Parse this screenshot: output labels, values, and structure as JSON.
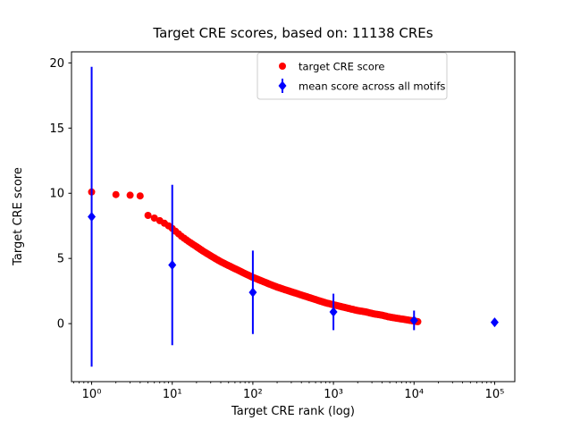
{
  "chart_data": {
    "type": "scatter",
    "title": "Target CRE scores, based on: 11138 CREs",
    "xlabel": "Target CRE rank (log)",
    "ylabel": "Target CRE score",
    "x_scale": "log10",
    "xlim_log10": [
      -0.25,
      5.25
    ],
    "ylim": [
      -4.45,
      20.85
    ],
    "x_ticks": [
      {
        "log10": 0,
        "label": "10⁰"
      },
      {
        "log10": 1,
        "label": "10¹"
      },
      {
        "log10": 2,
        "label": "10²"
      },
      {
        "log10": 3,
        "label": "10³"
      },
      {
        "log10": 4,
        "label": "10⁴"
      },
      {
        "log10": 5,
        "label": "10⁵"
      }
    ],
    "y_ticks": [
      0,
      5,
      10,
      15,
      20
    ],
    "grid": false,
    "legend_position": "upper center",
    "series": [
      {
        "name": "target CRE score",
        "marker": "circle",
        "color": "#ff0000",
        "n_points": 11138,
        "anchor_ranks": [
          1,
          2,
          3,
          4,
          5,
          6,
          7,
          8,
          9,
          10,
          13,
          16,
          20,
          25,
          32,
          40,
          50,
          63,
          79,
          100,
          126,
          158,
          200,
          251,
          316,
          398,
          501,
          631,
          794,
          1000,
          1259,
          1585,
          1995,
          2512,
          3162,
          3981,
          5012,
          6310,
          7943,
          10000,
          11138
        ],
        "anchor_scores": [
          10.1,
          9.9,
          9.85,
          9.8,
          8.3,
          8.1,
          7.9,
          7.7,
          7.5,
          7.3,
          6.7,
          6.3,
          5.9,
          5.5,
          5.1,
          4.75,
          4.45,
          4.15,
          3.85,
          3.55,
          3.3,
          3.05,
          2.8,
          2.6,
          2.4,
          2.2,
          2.0,
          1.8,
          1.6,
          1.45,
          1.3,
          1.15,
          1.0,
          0.9,
          0.75,
          0.65,
          0.5,
          0.4,
          0.3,
          0.2,
          0.15
        ]
      },
      {
        "name": "mean score across all motifs",
        "marker": "diamond",
        "color": "#0000ff",
        "x": [
          1,
          10,
          100,
          1000,
          10000,
          100000
        ],
        "y": [
          8.2,
          4.5,
          2.4,
          0.9,
          0.25,
          0.1
        ],
        "yerr": [
          11.5,
          6.15,
          3.2,
          1.4,
          0.75,
          0
        ]
      }
    ]
  }
}
